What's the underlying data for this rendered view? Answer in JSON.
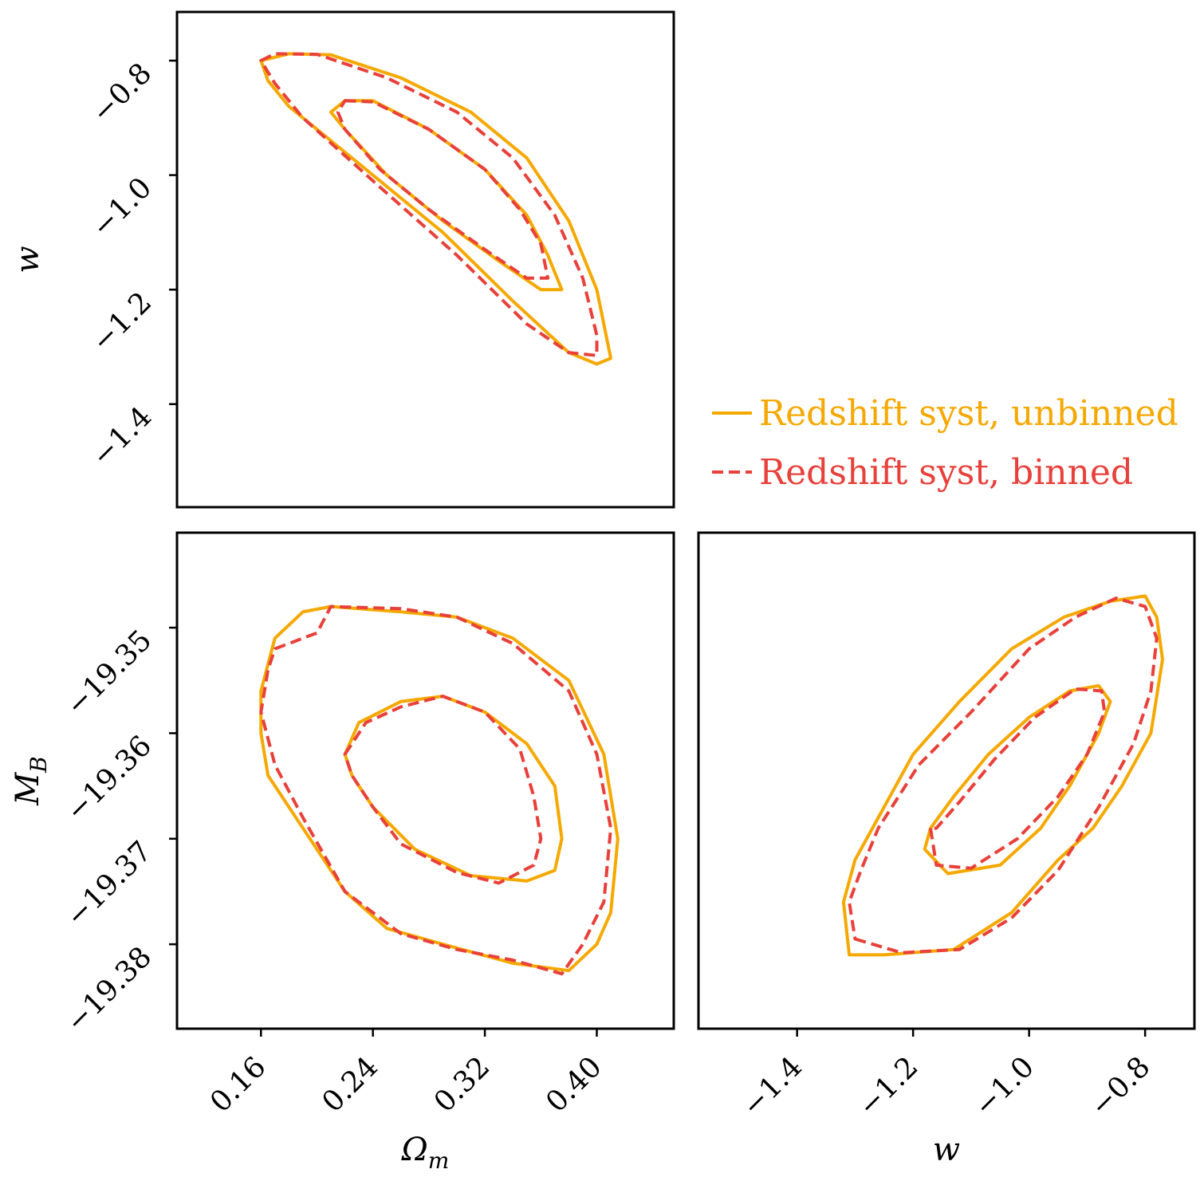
{
  "chart_data": {
    "type": "corner",
    "panels": [
      {
        "id": "om_w",
        "xparam": "Omega_m",
        "yparam": "w",
        "xlim": [
          0.1,
          0.455
        ],
        "ylim": [
          -1.58,
          -0.715
        ],
        "xticks": [
          "0.16",
          "0.24",
          "0.32",
          "0.40"
        ],
        "yticks": [
          "-0.8",
          "-1.0",
          "-1.2",
          "-1.4"
        ],
        "ylabel": "w"
      },
      {
        "id": "om_mb",
        "xparam": "Omega_m",
        "yparam": "M_B",
        "xlim": [
          0.1,
          0.455
        ],
        "ylim": [
          -19.388,
          -19.341
        ],
        "xticks": [
          "0.16",
          "0.24",
          "0.32",
          "0.40"
        ],
        "yticks": [
          "-19.35",
          "-19.36",
          "-19.37",
          "-19.38"
        ],
        "xlabel": "Ω",
        "xlabel_sub": "m",
        "ylabel": "M",
        "ylabel_sub": "B"
      },
      {
        "id": "w_mb",
        "xparam": "w",
        "yparam": "M_B",
        "xlim": [
          -1.57,
          -0.715
        ],
        "ylim": [
          -19.388,
          -19.341
        ],
        "xticks": [
          "-1.4",
          "-1.2",
          "-1.0",
          "-0.8"
        ],
        "xlabel": "w"
      }
    ],
    "series": [
      {
        "name": "Redshift syst, unbinned",
        "color": "#f5a800",
        "dash": "solid",
        "contours": {
          "om_w": {
            "outer": [
              [
                0.16,
                -0.8
              ],
              [
                0.18,
                -0.788
              ],
              [
                0.21,
                -0.79
              ],
              [
                0.26,
                -0.83
              ],
              [
                0.31,
                -0.89
              ],
              [
                0.35,
                -0.97
              ],
              [
                0.38,
                -1.08
              ],
              [
                0.4,
                -1.2
              ],
              [
                0.41,
                -1.32
              ],
              [
                0.4,
                -1.33
              ],
              [
                0.38,
                -1.31
              ],
              [
                0.34,
                -1.22
              ],
              [
                0.29,
                -1.1
              ],
              [
                0.23,
                -0.98
              ],
              [
                0.18,
                -0.88
              ],
              [
                0.165,
                -0.835
              ],
              [
                0.16,
                -0.8
              ]
            ],
            "inner": [
              [
                0.22,
                -0.87
              ],
              [
                0.24,
                -0.87
              ],
              [
                0.28,
                -0.92
              ],
              [
                0.32,
                -0.99
              ],
              [
                0.35,
                -1.07
              ],
              [
                0.365,
                -1.14
              ],
              [
                0.375,
                -1.2
              ],
              [
                0.36,
                -1.2
              ],
              [
                0.33,
                -1.15
              ],
              [
                0.29,
                -1.08
              ],
              [
                0.25,
                -1.0
              ],
              [
                0.22,
                -0.92
              ],
              [
                0.21,
                -0.89
              ],
              [
                0.22,
                -0.87
              ]
            ]
          },
          "om_mb": {
            "outer": [
              [
                0.16,
                -19.356
              ],
              [
                0.17,
                -19.351
              ],
              [
                0.19,
                -19.3485
              ],
              [
                0.21,
                -19.348
              ],
              [
                0.26,
                -19.3485
              ],
              [
                0.3,
                -19.349
              ],
              [
                0.34,
                -19.351
              ],
              [
                0.38,
                -19.355
              ],
              [
                0.405,
                -19.362
              ],
              [
                0.415,
                -19.37
              ],
              [
                0.41,
                -19.377
              ],
              [
                0.4,
                -19.38
              ],
              [
                0.38,
                -19.3825
              ],
              [
                0.34,
                -19.3818
              ],
              [
                0.29,
                -19.38
              ],
              [
                0.25,
                -19.3785
              ],
              [
                0.22,
                -19.375
              ],
              [
                0.2,
                -19.371
              ],
              [
                0.18,
                -19.367
              ],
              [
                0.165,
                -19.364
              ],
              [
                0.16,
                -19.36
              ],
              [
                0.16,
                -19.356
              ]
            ],
            "inner": [
              [
                0.22,
                -19.362
              ],
              [
                0.23,
                -19.359
              ],
              [
                0.26,
                -19.357
              ],
              [
                0.29,
                -19.3565
              ],
              [
                0.32,
                -19.358
              ],
              [
                0.35,
                -19.361
              ],
              [
                0.37,
                -19.365
              ],
              [
                0.375,
                -19.37
              ],
              [
                0.37,
                -19.373
              ],
              [
                0.35,
                -19.374
              ],
              [
                0.31,
                -19.3735
              ],
              [
                0.27,
                -19.371
              ],
              [
                0.24,
                -19.367
              ],
              [
                0.225,
                -19.364
              ],
              [
                0.22,
                -19.362
              ]
            ]
          },
          "w_mb": {
            "outer": [
              [
                -1.31,
                -19.381
              ],
              [
                -1.25,
                -19.381
              ],
              [
                -1.13,
                -19.3805
              ],
              [
                -1.03,
                -19.377
              ],
              [
                -0.95,
                -19.372
              ],
              [
                -0.89,
                -19.369
              ],
              [
                -0.84,
                -19.365
              ],
              [
                -0.79,
                -19.36
              ],
              [
                -0.77,
                -19.353
              ],
              [
                -0.78,
                -19.349
              ],
              [
                -0.8,
                -19.347
              ],
              [
                -0.86,
                -19.3475
              ],
              [
                -0.94,
                -19.349
              ],
              [
                -1.03,
                -19.352
              ],
              [
                -1.12,
                -19.357
              ],
              [
                -1.2,
                -19.362
              ],
              [
                -1.27,
                -19.369
              ],
              [
                -1.3,
                -19.372
              ],
              [
                -1.32,
                -19.376
              ],
              [
                -1.31,
                -19.381
              ]
            ],
            "inner": [
              [
                -1.18,
                -19.371
              ],
              [
                -1.14,
                -19.3733
              ],
              [
                -1.05,
                -19.3725
              ],
              [
                -0.98,
                -19.369
              ],
              [
                -0.93,
                -19.365
              ],
              [
                -0.88,
                -19.36
              ],
              [
                -0.86,
                -19.357
              ],
              [
                -0.88,
                -19.3555
              ],
              [
                -0.93,
                -19.356
              ],
              [
                -1.0,
                -19.3585
              ],
              [
                -1.07,
                -19.362
              ],
              [
                -1.13,
                -19.366
              ],
              [
                -1.17,
                -19.369
              ],
              [
                -1.18,
                -19.371
              ]
            ]
          }
        }
      },
      {
        "name": "Redshift syst, binned",
        "color": "#e8403a",
        "dash": "dashed",
        "contours": {
          "om_w": {
            "outer": [
              [
                0.16,
                -0.8
              ],
              [
                0.17,
                -0.788
              ],
              [
                0.2,
                -0.789
              ],
              [
                0.25,
                -0.83
              ],
              [
                0.3,
                -0.89
              ],
              [
                0.34,
                -0.97
              ],
              [
                0.37,
                -1.07
              ],
              [
                0.39,
                -1.18
              ],
              [
                0.4,
                -1.28
              ],
              [
                0.4,
                -1.315
              ],
              [
                0.38,
                -1.31
              ],
              [
                0.35,
                -1.26
              ],
              [
                0.3,
                -1.14
              ],
              [
                0.24,
                -1.01
              ],
              [
                0.19,
                -0.9
              ],
              [
                0.17,
                -0.84
              ],
              [
                0.16,
                -0.8
              ]
            ],
            "inner": [
              [
                0.22,
                -0.87
              ],
              [
                0.24,
                -0.872
              ],
              [
                0.28,
                -0.92
              ],
              [
                0.32,
                -0.99
              ],
              [
                0.345,
                -1.06
              ],
              [
                0.36,
                -1.12
              ],
              [
                0.365,
                -1.18
              ],
              [
                0.35,
                -1.18
              ],
              [
                0.32,
                -1.13
              ],
              [
                0.28,
                -1.06
              ],
              [
                0.245,
                -0.99
              ],
              [
                0.22,
                -0.92
              ],
              [
                0.215,
                -0.89
              ],
              [
                0.22,
                -0.87
              ]
            ]
          },
          "om_mb": {
            "outer": [
              [
                0.17,
                -19.352
              ],
              [
                0.18,
                -19.3515
              ],
              [
                0.2,
                -19.3505
              ],
              [
                0.21,
                -19.348
              ],
              [
                0.26,
                -19.3482
              ],
              [
                0.3,
                -19.349
              ],
              [
                0.34,
                -19.3515
              ],
              [
                0.38,
                -19.356
              ],
              [
                0.4,
                -19.362
              ],
              [
                0.41,
                -19.369
              ],
              [
                0.405,
                -19.376
              ],
              [
                0.39,
                -19.38
              ],
              [
                0.375,
                -19.3828
              ],
              [
                0.34,
                -19.3815
              ],
              [
                0.3,
                -19.3805
              ],
              [
                0.26,
                -19.379
              ],
              [
                0.22,
                -19.375
              ],
              [
                0.19,
                -19.368
              ],
              [
                0.17,
                -19.363
              ],
              [
                0.16,
                -19.358
              ],
              [
                0.165,
                -19.354
              ],
              [
                0.17,
                -19.352
              ]
            ],
            "inner": [
              [
                0.22,
                -19.362
              ],
              [
                0.235,
                -19.359
              ],
              [
                0.26,
                -19.3575
              ],
              [
                0.29,
                -19.3565
              ],
              [
                0.32,
                -19.358
              ],
              [
                0.345,
                -19.3615
              ],
              [
                0.355,
                -19.366
              ],
              [
                0.36,
                -19.37
              ],
              [
                0.355,
                -19.3725
              ],
              [
                0.33,
                -19.3742
              ],
              [
                0.3,
                -19.3732
              ],
              [
                0.26,
                -19.3705
              ],
              [
                0.24,
                -19.367
              ],
              [
                0.225,
                -19.364
              ],
              [
                0.22,
                -19.362
              ]
            ]
          },
          "w_mb": {
            "outer": [
              [
                -1.3,
                -19.3795
              ],
              [
                -1.22,
                -19.3808
              ],
              [
                -1.12,
                -19.3805
              ],
              [
                -1.03,
                -19.3775
              ],
              [
                -0.95,
                -19.373
              ],
              [
                -0.88,
                -19.367
              ],
              [
                -0.82,
                -19.361
              ],
              [
                -0.79,
                -19.356
              ],
              [
                -0.78,
                -19.351
              ],
              [
                -0.8,
                -19.348
              ],
              [
                -0.85,
                -19.3472
              ],
              [
                -0.92,
                -19.349
              ],
              [
                -1.0,
                -19.352
              ],
              [
                -1.1,
                -19.358
              ],
              [
                -1.19,
                -19.363
              ],
              [
                -1.26,
                -19.369
              ],
              [
                -1.29,
                -19.373
              ],
              [
                -1.31,
                -19.376
              ],
              [
                -1.3,
                -19.3795
              ]
            ],
            "inner": [
              [
                -1.17,
                -19.369
              ],
              [
                -1.16,
                -19.3725
              ],
              [
                -1.1,
                -19.3728
              ],
              [
                -1.02,
                -19.37
              ],
              [
                -0.95,
                -19.366
              ],
              [
                -0.9,
                -19.362
              ],
              [
                -0.87,
                -19.358
              ],
              [
                -0.875,
                -19.356
              ],
              [
                -0.92,
                -19.3558
              ],
              [
                -0.99,
                -19.3585
              ],
              [
                -1.06,
                -19.3625
              ],
              [
                -1.12,
                -19.3665
              ],
              [
                -1.16,
                -19.369
              ],
              [
                -1.17,
                -19.369
              ]
            ]
          }
        }
      }
    ],
    "legend": {
      "placement": "upper-right empty cell"
    }
  }
}
